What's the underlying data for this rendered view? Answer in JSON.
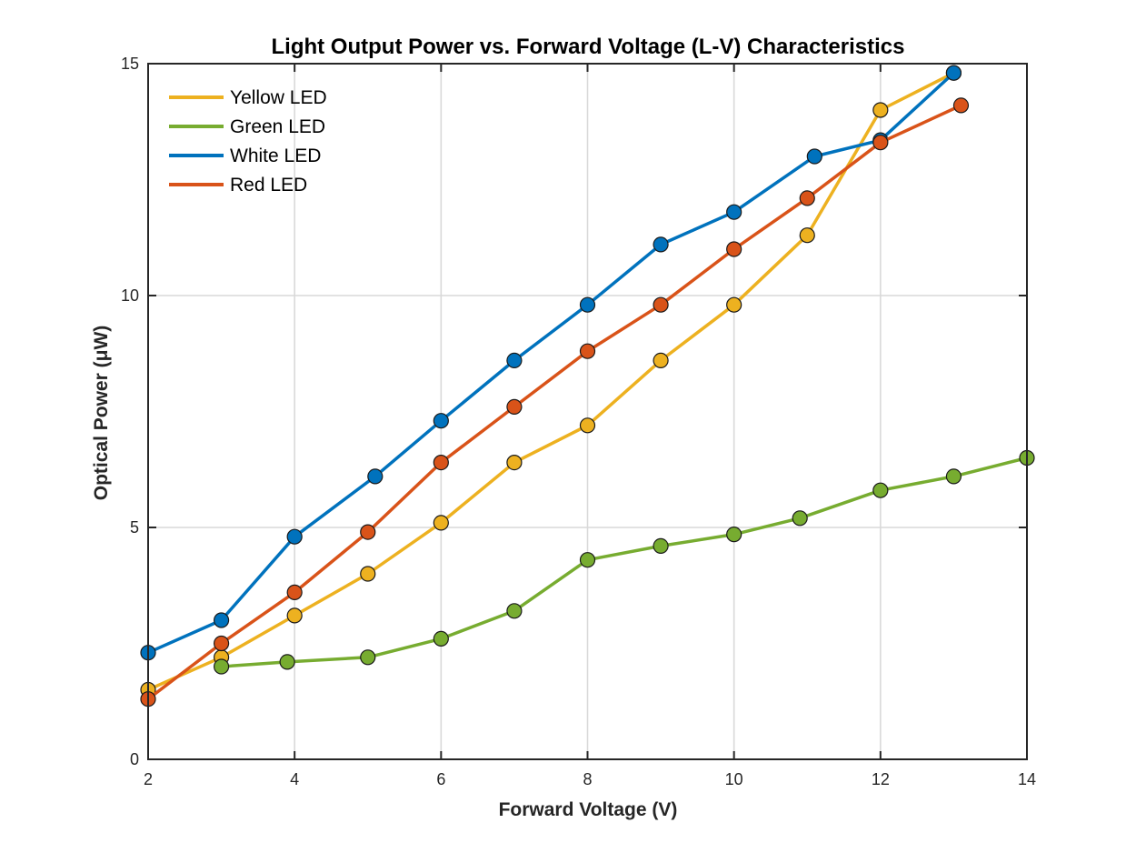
{
  "chart_data": {
    "type": "line",
    "title": "Light Output Power vs. Forward Voltage (L-V) Characteristics",
    "xlabel": "Forward Voltage (V)",
    "ylabel": "Optical Power (μW)",
    "xlim": [
      2,
      14
    ],
    "ylim": [
      0,
      15
    ],
    "xticks": [
      2,
      4,
      6,
      8,
      10,
      12,
      14
    ],
    "yticks": [
      0,
      5,
      10,
      15
    ],
    "grid": true,
    "legend_position": "top-left",
    "series": [
      {
        "name": "Yellow LED",
        "color": "#EDB120",
        "x": [
          2,
          3,
          4,
          5,
          6,
          7,
          8,
          9,
          10,
          11,
          12,
          13
        ],
        "y": [
          1.5,
          2.2,
          3.1,
          4.0,
          5.1,
          6.4,
          7.2,
          8.6,
          9.8,
          11.3,
          14.0,
          14.8
        ]
      },
      {
        "name": "Green LED",
        "color": "#77AC30",
        "x": [
          3,
          3.9,
          5,
          6,
          7,
          8,
          9,
          10,
          10.9,
          12,
          13,
          14
        ],
        "y": [
          2.0,
          2.1,
          2.2,
          2.6,
          3.2,
          4.3,
          4.6,
          4.85,
          5.2,
          5.8,
          6.1,
          6.5
        ]
      },
      {
        "name": "White LED",
        "color": "#0072BD",
        "x": [
          2,
          3,
          4,
          5.1,
          6,
          7,
          8,
          9,
          10,
          11.1,
          12,
          13
        ],
        "y": [
          2.3,
          3.0,
          4.8,
          6.1,
          7.3,
          8.6,
          9.8,
          11.1,
          11.8,
          13.0,
          13.35,
          14.8
        ]
      },
      {
        "name": "Red LED",
        "color": "#D95319",
        "x": [
          2,
          3,
          4,
          5,
          6,
          7,
          8,
          9,
          10,
          11,
          12,
          13.1
        ],
        "y": [
          1.3,
          2.5,
          3.6,
          4.9,
          6.4,
          7.6,
          8.8,
          9.8,
          11.0,
          12.1,
          13.3,
          14.1
        ]
      }
    ]
  }
}
